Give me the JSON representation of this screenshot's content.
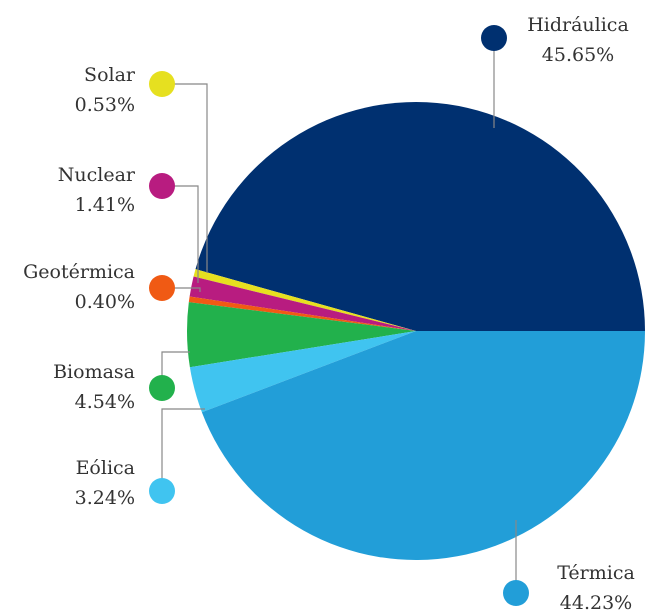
{
  "chart_data": {
    "type": "pie",
    "categories": [
      "Hidráulica",
      "Solar",
      "Nuclear",
      "Geotérmica",
      "Biomasa",
      "Eólica",
      "Térmica"
    ],
    "values": [
      45.65,
      0.53,
      1.41,
      0.4,
      4.54,
      3.24,
      44.23
    ],
    "value_labels": [
      "45.65%",
      "0.53%",
      "1.41%",
      "0.40%",
      "4.54%",
      "3.24%",
      "44.23%"
    ],
    "colors": [
      "#003070",
      "#e6e020",
      "#b81c80",
      "#f05a14",
      "#22b14c",
      "#40c4f0",
      "#229ed8"
    ]
  }
}
